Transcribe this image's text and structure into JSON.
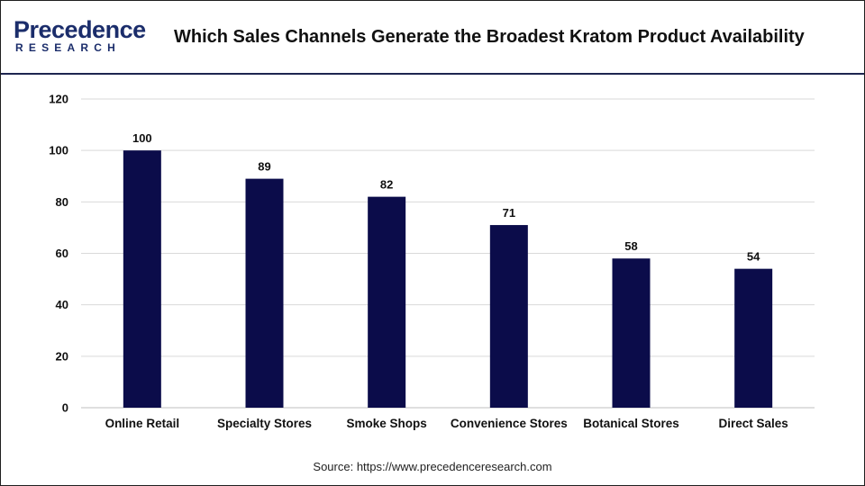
{
  "brand": {
    "logo_main": "Precedence",
    "logo_sub": "RESEARCH",
    "color": "#1b2d6b"
  },
  "title": "Which Sales Channels Generate the Broadest Kratom Product Availability",
  "source": "Source: https://www.precedenceresearch.com",
  "chart_data": {
    "type": "bar",
    "categories": [
      "Online Retail",
      "Specialty Stores",
      "Smoke Shops",
      "Convenience Stores",
      "Botanical Stores",
      "Direct Sales"
    ],
    "values": [
      100,
      89,
      82,
      71,
      58,
      54
    ],
    "data_labels": [
      "100",
      "89",
      "82",
      "71",
      "58",
      "54"
    ],
    "ylim": [
      0,
      120
    ],
    "yticks": [
      0,
      20,
      40,
      60,
      80,
      100,
      120
    ],
    "grid": true,
    "legend": "none",
    "bar_color": "#0b0c4a",
    "grid_color": "#d9d9d9"
  }
}
